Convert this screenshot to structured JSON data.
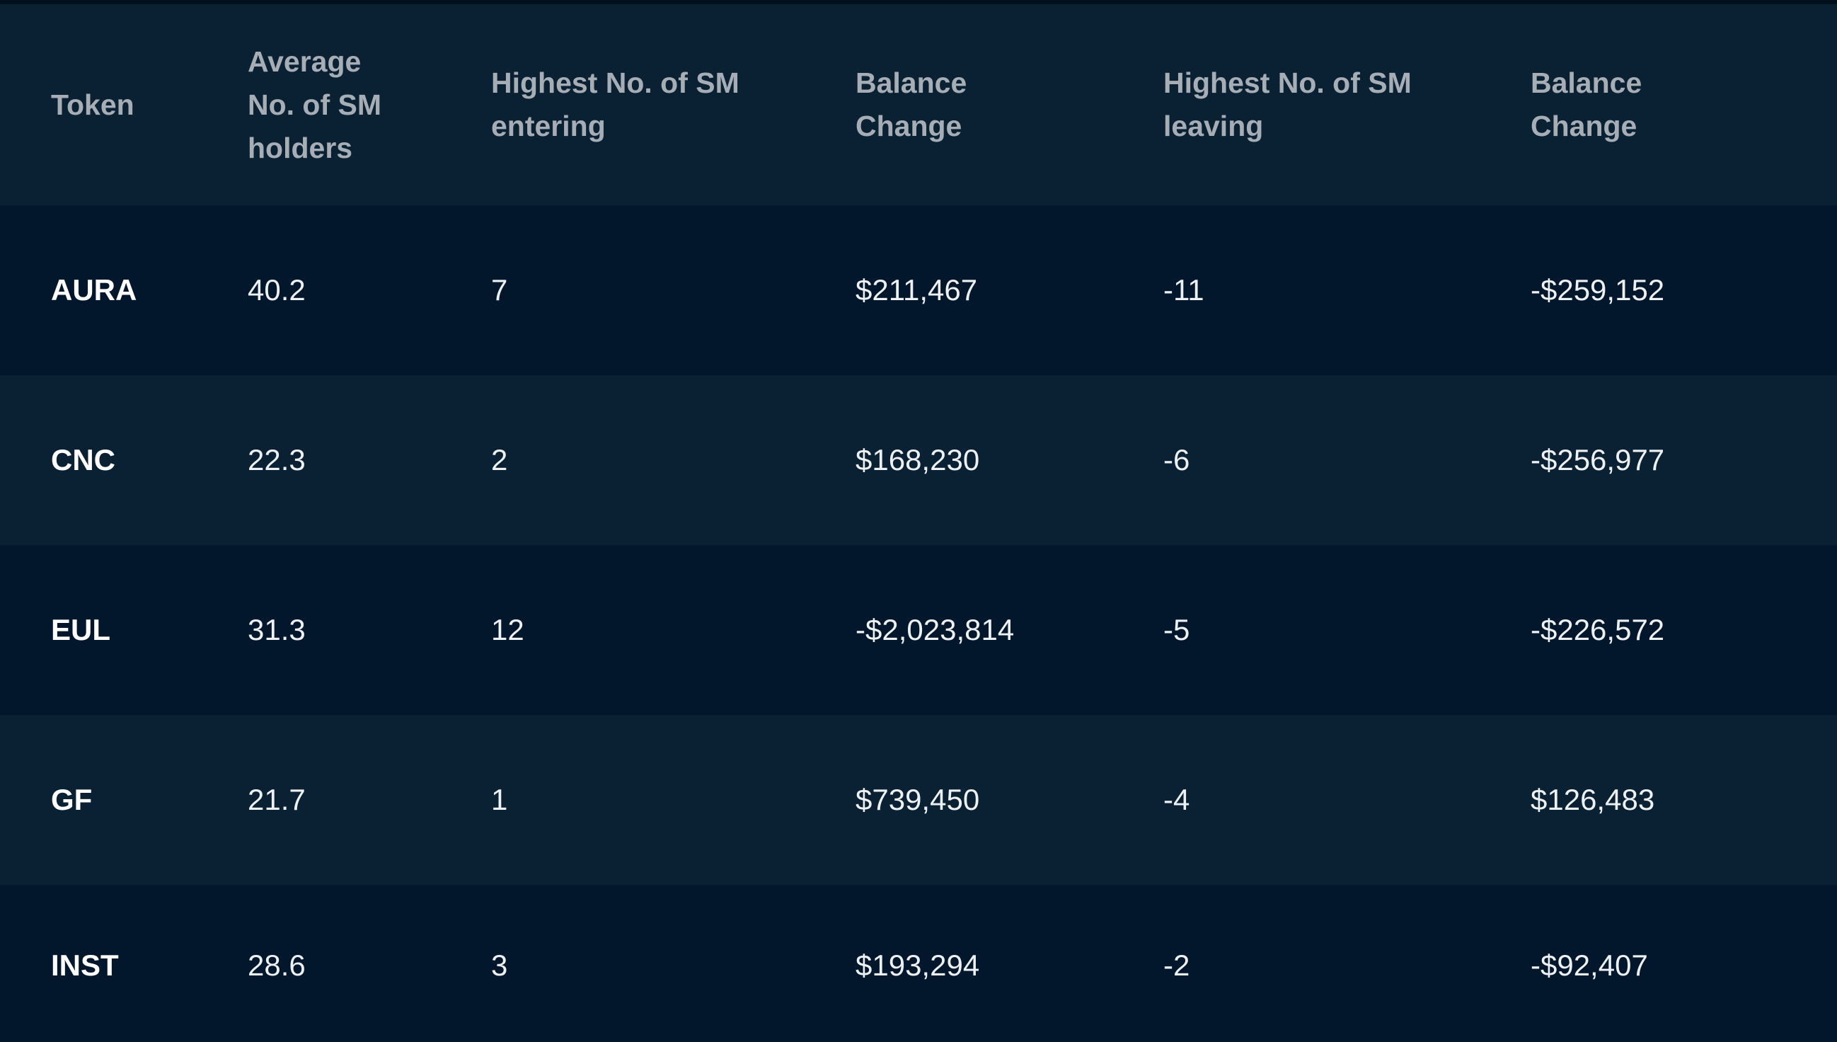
{
  "chart_data": {
    "type": "table",
    "columns": [
      "Token",
      "Average No. of SM holders",
      "Highest No. of SM entering",
      "Balance Change",
      "Highest No. of SM leaving",
      "Balance Change"
    ],
    "header_lines": [
      [
        "Token"
      ],
      [
        "Average",
        "No. of SM",
        "holders"
      ],
      [
        "Highest No. of SM",
        "entering"
      ],
      [
        "Balance",
        "Change"
      ],
      [
        "Highest No. of SM",
        "leaving"
      ],
      [
        "Balance",
        "Change"
      ]
    ],
    "rows": [
      [
        "AURA",
        "40.2",
        "7",
        "$211,467",
        "-11",
        "-$259,152"
      ],
      [
        "CNC",
        "22.3",
        "2",
        "$168,230",
        "-6",
        "-$256,977"
      ],
      [
        "EUL",
        "31.3",
        "12",
        "-$2,023,814",
        "-5",
        "-$226,572"
      ],
      [
        "GF",
        "21.7",
        "1",
        "$739,450",
        "-4",
        "$126,483"
      ],
      [
        "INST",
        "28.6",
        "3",
        "$193,294",
        "-2",
        "-$92,407"
      ]
    ]
  },
  "colors": {
    "header_bg": "#0a2133",
    "row_dark": "#02172b",
    "row_light": "#0a2133",
    "header_text": "#a6adb5",
    "cell_text": "#eef1f4"
  }
}
